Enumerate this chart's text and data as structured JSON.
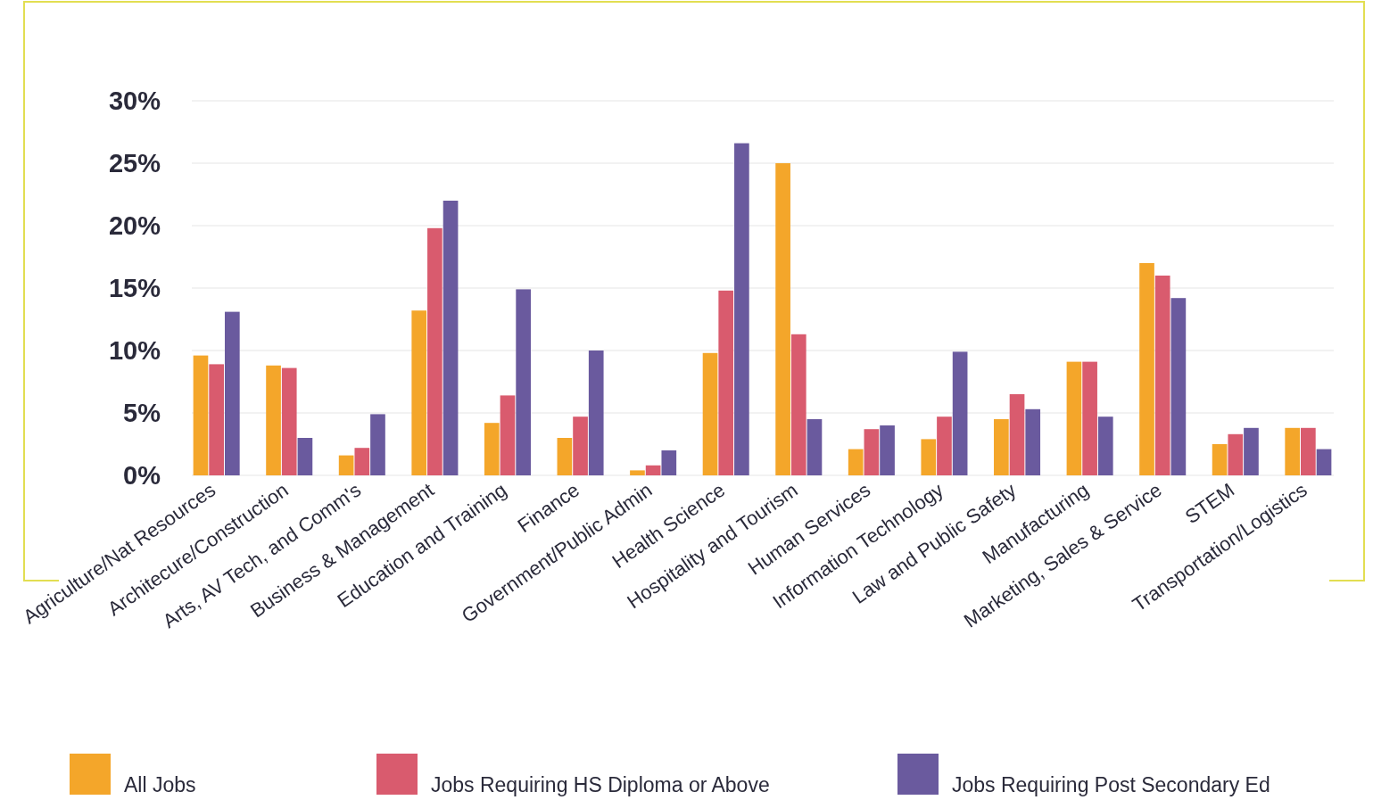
{
  "chart_data": {
    "type": "bar",
    "categories": [
      "Agriculture/Nat Resources",
      "Architecure/Construction",
      "Arts, AV Tech, and Comm's",
      "Business & Management",
      "Education and Training",
      "Finance",
      "Government/Public Admin",
      "Health Science",
      "Hospitality and Tourism",
      "Human Services",
      "Information Technology",
      "Law and Public Safety",
      "Manufacturing",
      "Marketing, Sales & Service",
      "STEM",
      "Transportation/Logistics"
    ],
    "series": [
      {
        "name": "All Jobs",
        "color": "#f4a62a",
        "values": [
          9.6,
          8.8,
          1.6,
          13.2,
          4.2,
          3.0,
          0.4,
          9.8,
          25.0,
          2.1,
          2.9,
          4.5,
          9.1,
          17.0,
          2.5,
          3.8
        ]
      },
      {
        "name": "Jobs Requiring HS Diploma or Above",
        "color": "#d95b6e",
        "values": [
          8.9,
          8.6,
          2.2,
          19.8,
          6.4,
          4.7,
          0.8,
          14.8,
          11.3,
          3.7,
          4.7,
          6.5,
          9.1,
          16.0,
          3.3,
          3.8
        ]
      },
      {
        "name": "Jobs Requiring Post Secondary Ed",
        "color": "#6a5a9e",
        "values": [
          13.1,
          3.0,
          4.9,
          22.0,
          14.9,
          10.0,
          2.0,
          26.6,
          4.5,
          4.0,
          9.9,
          5.3,
          4.7,
          14.2,
          3.8,
          2.1
        ]
      }
    ],
    "ylim": [
      0,
      30
    ],
    "yticks": [
      {
        "value": 0,
        "label": "0%"
      },
      {
        "value": 5,
        "label": "5%"
      },
      {
        "value": 10,
        "label": "10%"
      },
      {
        "value": 15,
        "label": "15%"
      },
      {
        "value": 20,
        "label": "20%"
      },
      {
        "value": 25,
        "label": "25%"
      },
      {
        "value": 30,
        "label": "30%"
      }
    ],
    "grid": "y",
    "legend": "bottom"
  }
}
